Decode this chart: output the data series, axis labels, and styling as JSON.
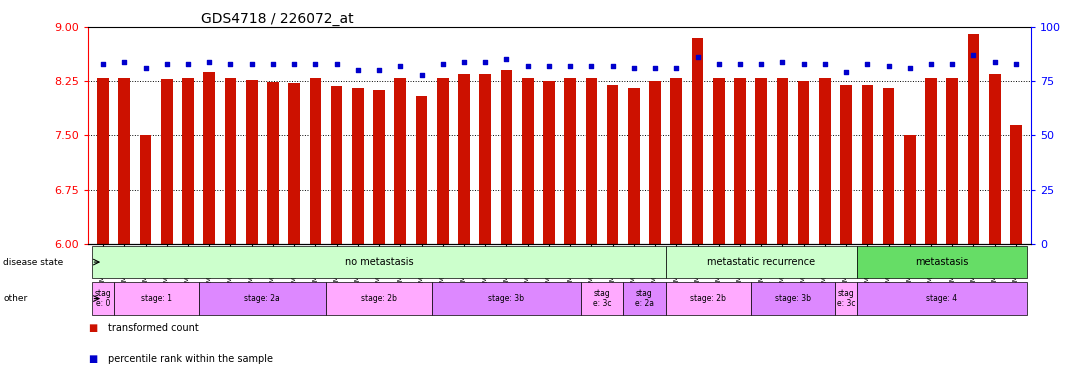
{
  "title": "GDS4718 / 226072_at",
  "samples": [
    "GSM549121",
    "GSM549102",
    "GSM549104",
    "GSM549108",
    "GSM549119",
    "GSM549133",
    "GSM549139",
    "GSM549099",
    "GSM549109",
    "GSM549110",
    "GSM549114",
    "GSM549122",
    "GSM549134",
    "GSM549136",
    "GSM549140",
    "GSM549111",
    "GSM549113",
    "GSM549132",
    "GSM549137",
    "GSM549142",
    "GSM549100",
    "GSM549107",
    "GSM549115",
    "GSM549116",
    "GSM549120",
    "GSM549131",
    "GSM549118",
    "GSM549129",
    "GSM549123",
    "GSM549124",
    "GSM549126",
    "GSM549128",
    "GSM549103",
    "GSM549117",
    "GSM549138",
    "GSM549141",
    "GSM549130",
    "GSM549101",
    "GSM549105",
    "GSM549106",
    "GSM549112",
    "GSM549125",
    "GSM549127",
    "GSM549135"
  ],
  "bar_values": [
    8.3,
    8.3,
    7.5,
    8.28,
    8.3,
    8.38,
    8.3,
    8.27,
    8.24,
    8.23,
    8.3,
    8.18,
    8.15,
    8.13,
    8.3,
    8.05,
    8.3,
    8.35,
    8.35,
    8.4,
    8.3,
    8.25,
    8.3,
    8.3,
    8.2,
    8.15,
    8.25,
    8.3,
    8.85,
    8.3,
    8.3,
    8.3,
    8.3,
    8.25,
    8.3,
    8.2,
    8.2,
    8.15,
    7.5,
    8.3,
    8.3,
    8.9,
    8.35,
    7.65
  ],
  "percentile_values": [
    83,
    84,
    81,
    83,
    83,
    84,
    83,
    83,
    83,
    83,
    83,
    83,
    80,
    80,
    82,
    78,
    83,
    84,
    84,
    85,
    82,
    82,
    82,
    82,
    82,
    81,
    81,
    81,
    86,
    83,
    83,
    83,
    84,
    83,
    83,
    79,
    83,
    82,
    81,
    83,
    83,
    87,
    84,
    83
  ],
  "ylim_left": [
    6,
    9
  ],
  "ylim_right": [
    0,
    100
  ],
  "yticks_left": [
    6,
    6.75,
    7.5,
    8.25,
    9
  ],
  "yticks_right": [
    0,
    25,
    50,
    75,
    100
  ],
  "bar_color": "#cc1100",
  "dot_color": "#0000cc",
  "background_color": "#ffffff",
  "disease_state_groups": [
    {
      "label": "no metastasis",
      "start": 0,
      "end": 27,
      "color": "#ccffcc"
    },
    {
      "label": "metastatic recurrence",
      "start": 27,
      "end": 36,
      "color": "#ccffcc"
    },
    {
      "label": "metastasis",
      "start": 36,
      "end": 44,
      "color": "#66dd66"
    }
  ],
  "stage_groups": [
    {
      "label": "stag\ne: 0",
      "start": 0,
      "end": 1,
      "color": "#ffaaff"
    },
    {
      "label": "stage: 1",
      "start": 1,
      "end": 5,
      "color": "#ffaaff"
    },
    {
      "label": "stage: 2a",
      "start": 5,
      "end": 11,
      "color": "#dd88ff"
    },
    {
      "label": "stage: 2b",
      "start": 11,
      "end": 16,
      "color": "#ffaaff"
    },
    {
      "label": "stage: 3b",
      "start": 16,
      "end": 23,
      "color": "#dd88ff"
    },
    {
      "label": "stag\ne: 3c",
      "start": 23,
      "end": 25,
      "color": "#ffaaff"
    },
    {
      "label": "stag\ne: 2a",
      "start": 25,
      "end": 27,
      "color": "#dd88ff"
    },
    {
      "label": "stage: 2b",
      "start": 27,
      "end": 31,
      "color": "#ffaaff"
    },
    {
      "label": "stage: 3b",
      "start": 31,
      "end": 35,
      "color": "#dd88ff"
    },
    {
      "label": "stag\ne: 3c",
      "start": 35,
      "end": 36,
      "color": "#ffaaff"
    },
    {
      "label": "stage: 4",
      "start": 36,
      "end": 44,
      "color": "#dd88ff"
    }
  ],
  "legend_items": [
    {
      "label": "transformed count",
      "color": "#cc1100"
    },
    {
      "label": "percentile rank within the sample",
      "color": "#0000cc"
    }
  ],
  "fig_width": 10.76,
  "fig_height": 3.84,
  "dpi": 100
}
